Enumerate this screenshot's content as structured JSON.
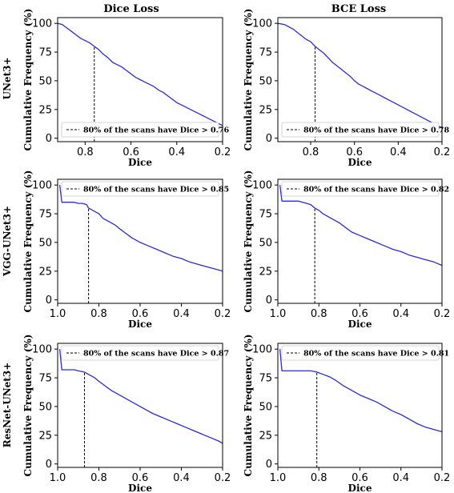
{
  "figure": {
    "columns": [
      "Dice Loss",
      "BCE Loss"
    ],
    "rows": [
      "UNet3+",
      "VGG-UNet3+",
      "ResNet-UNet3+"
    ]
  },
  "chart_data": [
    {
      "type": "line",
      "row": 0,
      "col": 0,
      "title": "Dice Loss",
      "row_label": "UNet3+",
      "xlabel": "Dice",
      "ylabel": "Cumulative Frequency (%)",
      "xlim": [
        0.92,
        0.2
      ],
      "ylim": [
        -3,
        105
      ],
      "xticks": [
        0.8,
        0.6,
        0.4,
        0.2
      ],
      "yticks": [
        0,
        25,
        50,
        75,
        100
      ],
      "threshold": 0.76,
      "legend": "80% of the scans have Dice > 0.76",
      "legend_loc": "bottom-left",
      "series": [
        {
          "color": "#2b2bd6",
          "x": [
            0.92,
            0.9,
            0.88,
            0.86,
            0.84,
            0.82,
            0.8,
            0.78,
            0.76,
            0.74,
            0.72,
            0.7,
            0.68,
            0.66,
            0.64,
            0.62,
            0.6,
            0.58,
            0.56,
            0.54,
            0.52,
            0.5,
            0.48,
            0.46,
            0.44,
            0.42,
            0.4,
            0.38,
            0.36,
            0.34,
            0.32,
            0.3,
            0.28,
            0.26,
            0.24,
            0.22,
            0.2
          ],
          "y": [
            100,
            99,
            96,
            93,
            90,
            87,
            85,
            83,
            80,
            77,
            73,
            70,
            66,
            64,
            62,
            59,
            56,
            53,
            51,
            49,
            47,
            45,
            42,
            40,
            37,
            34,
            31,
            29,
            27,
            25,
            23,
            21,
            19,
            17,
            15,
            13,
            11
          ]
        }
      ]
    },
    {
      "type": "line",
      "row": 0,
      "col": 1,
      "title": "BCE Loss",
      "row_label": "UNet3+",
      "xlabel": "Dice",
      "ylabel": "Cumulative Frequency (%)",
      "xlim": [
        0.95,
        0.2
      ],
      "ylim": [
        -3,
        105
      ],
      "xticks": [
        0.8,
        0.6,
        0.4,
        0.2
      ],
      "yticks": [
        0,
        25,
        50,
        75,
        100
      ],
      "threshold": 0.78,
      "legend": "80% of the scans have Dice > 0.78",
      "legend_loc": "bottom-left",
      "series": [
        {
          "color": "#2b2bd6",
          "x": [
            0.95,
            0.92,
            0.9,
            0.88,
            0.86,
            0.84,
            0.82,
            0.8,
            0.78,
            0.76,
            0.74,
            0.72,
            0.7,
            0.68,
            0.66,
            0.64,
            0.62,
            0.6,
            0.58,
            0.56,
            0.54,
            0.52,
            0.5,
            0.48,
            0.46,
            0.44,
            0.42,
            0.4,
            0.38,
            0.36,
            0.34,
            0.32,
            0.3,
            0.28,
            0.26,
            0.24,
            0.22,
            0.2
          ],
          "y": [
            100,
            99,
            97,
            95,
            92,
            89,
            86,
            84,
            80,
            77,
            74,
            70,
            66,
            63,
            60,
            57,
            54,
            50,
            47,
            45,
            43,
            41,
            39,
            37,
            35,
            33,
            31,
            29,
            27,
            25,
            23,
            21,
            19,
            17,
            15,
            13,
            11,
            9
          ]
        }
      ]
    },
    {
      "type": "line",
      "row": 1,
      "col": 0,
      "title": "",
      "row_label": "VGG-UNet3+",
      "xlabel": "Dice",
      "ylabel": "Cumulative Frequency (%)",
      "xlim": [
        1.0,
        0.2
      ],
      "ylim": [
        -3,
        105
      ],
      "xticks": [
        1.0,
        0.8,
        0.6,
        0.4,
        0.2
      ],
      "yticks": [
        0,
        25,
        50,
        75,
        100
      ],
      "threshold": 0.85,
      "legend": "80% of the scans have Dice > 0.85",
      "legend_loc": "top-left",
      "series": [
        {
          "color": "#2b2bd6",
          "x": [
            0.99,
            0.98,
            0.96,
            0.94,
            0.92,
            0.9,
            0.88,
            0.86,
            0.85,
            0.83,
            0.8,
            0.78,
            0.75,
            0.72,
            0.7,
            0.67,
            0.64,
            0.6,
            0.56,
            0.52,
            0.48,
            0.44,
            0.4,
            0.36,
            0.32,
            0.28,
            0.24,
            0.2
          ],
          "y": [
            100,
            85,
            85,
            85,
            85,
            84,
            84,
            83,
            80,
            78,
            75,
            71,
            68,
            65,
            62,
            58,
            54,
            50,
            47,
            44,
            41,
            38,
            36,
            33,
            31,
            29,
            27,
            25
          ]
        }
      ]
    },
    {
      "type": "line",
      "row": 1,
      "col": 1,
      "title": "",
      "row_label": "VGG-UNet3+",
      "xlabel": "Dice",
      "ylabel": "Cumulative Frequency (%)",
      "xlim": [
        1.0,
        0.2
      ],
      "ylim": [
        -3,
        105
      ],
      "xticks": [
        1.0,
        0.8,
        0.6,
        0.4,
        0.2
      ],
      "yticks": [
        0,
        25,
        50,
        75,
        100
      ],
      "threshold": 0.82,
      "legend": "80% of the scans have Dice > 0.82",
      "legend_loc": "top-left",
      "series": [
        {
          "color": "#2b2bd6",
          "x": [
            0.99,
            0.98,
            0.96,
            0.94,
            0.92,
            0.9,
            0.88,
            0.86,
            0.84,
            0.82,
            0.8,
            0.78,
            0.75,
            0.72,
            0.7,
            0.67,
            0.64,
            0.6,
            0.56,
            0.52,
            0.48,
            0.44,
            0.4,
            0.36,
            0.32,
            0.28,
            0.24,
            0.2
          ],
          "y": [
            100,
            86,
            86,
            86,
            86,
            86,
            85,
            84,
            83,
            80,
            78,
            75,
            72,
            69,
            67,
            63,
            59,
            56,
            53,
            50,
            47,
            44,
            42,
            39,
            37,
            35,
            33,
            30
          ]
        }
      ]
    },
    {
      "type": "line",
      "row": 2,
      "col": 0,
      "title": "",
      "row_label": "ResNet-UNet3+",
      "xlabel": "Dice",
      "ylabel": "Cumulative Frequency (%)",
      "xlim": [
        1.0,
        0.2
      ],
      "ylim": [
        -3,
        105
      ],
      "xticks": [
        1.0,
        0.8,
        0.6,
        0.4,
        0.2
      ],
      "yticks": [
        0,
        25,
        50,
        75,
        100
      ],
      "threshold": 0.87,
      "legend": "80% of the scans have Dice > 0.87",
      "legend_loc": "top-left",
      "series": [
        {
          "color": "#2b2bd6",
          "x": [
            0.99,
            0.98,
            0.96,
            0.94,
            0.92,
            0.9,
            0.87,
            0.85,
            0.82,
            0.8,
            0.77,
            0.74,
            0.7,
            0.66,
            0.62,
            0.58,
            0.54,
            0.5,
            0.46,
            0.42,
            0.38,
            0.34,
            0.3,
            0.26,
            0.22,
            0.2
          ],
          "y": [
            100,
            82,
            82,
            82,
            82,
            81,
            80,
            78,
            75,
            72,
            68,
            64,
            60,
            56,
            52,
            48,
            44,
            41,
            38,
            35,
            32,
            29,
            26,
            23,
            20,
            18
          ]
        }
      ]
    },
    {
      "type": "line",
      "row": 2,
      "col": 1,
      "title": "",
      "row_label": "ResNet-UNet3+",
      "xlabel": "Dice",
      "ylabel": "Cumulative Frequency (%)",
      "xlim": [
        1.0,
        0.2
      ],
      "ylim": [
        -3,
        105
      ],
      "xticks": [
        1.0,
        0.8,
        0.6,
        0.4,
        0.2
      ],
      "yticks": [
        0,
        25,
        50,
        75,
        100
      ],
      "threshold": 0.81,
      "legend": "80% of the scans have Dice > 0.81",
      "legend_loc": "top-left",
      "series": [
        {
          "color": "#2b2bd6",
          "x": [
            0.99,
            0.98,
            0.96,
            0.94,
            0.92,
            0.9,
            0.88,
            0.86,
            0.84,
            0.81,
            0.78,
            0.75,
            0.72,
            0.68,
            0.64,
            0.6,
            0.56,
            0.52,
            0.48,
            0.44,
            0.4,
            0.36,
            0.32,
            0.28,
            0.24,
            0.2
          ],
          "y": [
            100,
            81,
            81,
            81,
            81,
            81,
            81,
            81,
            81,
            80,
            78,
            76,
            73,
            68,
            64,
            60,
            57,
            54,
            50,
            46,
            43,
            39,
            35,
            32,
            30,
            28
          ]
        }
      ]
    }
  ]
}
